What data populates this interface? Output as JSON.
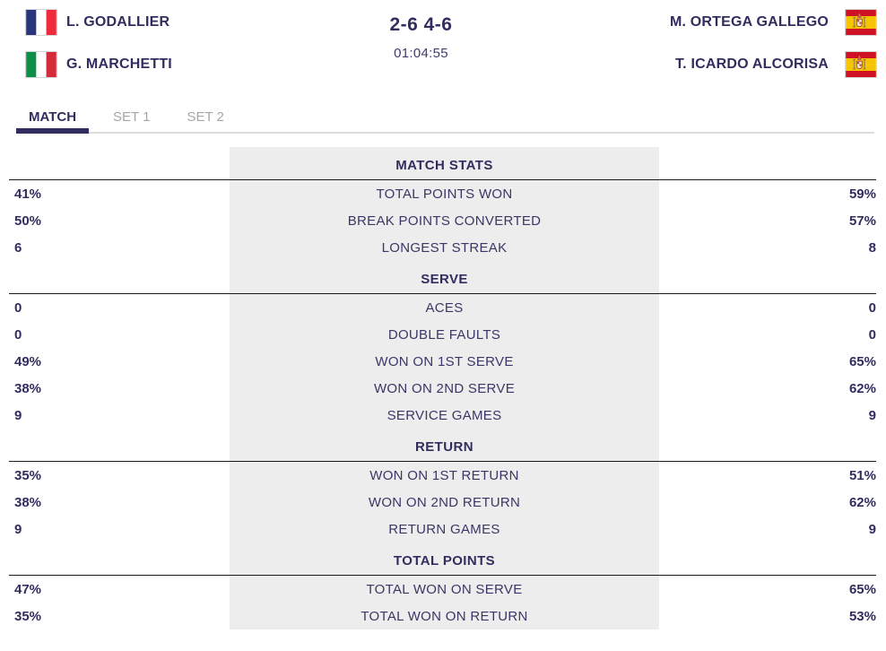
{
  "header": {
    "team_left": {
      "players": [
        {
          "name": "L. GODALLIER",
          "flag": "france"
        },
        {
          "name": "G. MARCHETTI",
          "flag": "italy"
        }
      ]
    },
    "score": "2-6 4-6",
    "duration": "01:04:55",
    "team_right": {
      "players": [
        {
          "name": "M. ORTEGA GALLEGO",
          "flag": "spain"
        },
        {
          "name": "T. ICARDO ALCORISA",
          "flag": "spain"
        }
      ]
    }
  },
  "tabs": [
    {
      "label": "MATCH",
      "active": true
    },
    {
      "label": "SET 1",
      "active": false
    },
    {
      "label": "SET 2",
      "active": false
    }
  ],
  "stats_sections": [
    {
      "title": "MATCH STATS",
      "rows": [
        {
          "left": "41%",
          "label": "TOTAL POINTS WON",
          "right": "59%"
        },
        {
          "left": "50%",
          "label": "BREAK POINTS CONVERTED",
          "right": "57%"
        },
        {
          "left": "6",
          "label": "LONGEST STREAK",
          "right": "8"
        }
      ]
    },
    {
      "title": "SERVE",
      "rows": [
        {
          "left": "0",
          "label": "ACES",
          "right": "0"
        },
        {
          "left": "0",
          "label": "DOUBLE FAULTS",
          "right": "0"
        },
        {
          "left": "49%",
          "label": "WON ON 1ST SERVE",
          "right": "65%"
        },
        {
          "left": "38%",
          "label": "WON ON 2ND SERVE",
          "right": "62%"
        },
        {
          "left": "9",
          "label": "SERVICE GAMES",
          "right": "9"
        }
      ]
    },
    {
      "title": "RETURN",
      "rows": [
        {
          "left": "35%",
          "label": "WON ON 1ST RETURN",
          "right": "51%"
        },
        {
          "left": "38%",
          "label": "WON ON 2ND RETURN",
          "right": "62%"
        },
        {
          "left": "9",
          "label": "RETURN GAMES",
          "right": "9"
        }
      ]
    },
    {
      "title": "TOTAL POINTS",
      "rows": [
        {
          "left": "47%",
          "label": "TOTAL WON ON SERVE",
          "right": "65%"
        },
        {
          "left": "35%",
          "label": "TOTAL WON ON RETURN",
          "right": "53%"
        }
      ]
    }
  ],
  "colors": {
    "navy": "#312e5f",
    "label": "#3a3766",
    "tab_inactive": "#a6a6a6",
    "stats_bg": "#ededed",
    "divider_dark": "#1a1a1a",
    "divider_light": "#dcdcdc",
    "flag_france_blue": "#27357e",
    "flag_france_red": "#ee2b3d",
    "flag_italy_green": "#0d8f45",
    "flag_italy_red": "#d32b3a",
    "flag_spain_red": "#cf1126",
    "flag_spain_yellow": "#f6c500"
  }
}
